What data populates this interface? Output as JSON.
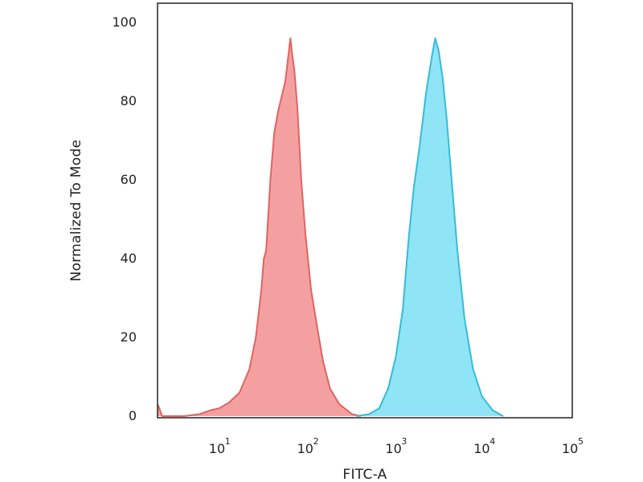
{
  "chart_data": {
    "type": "area",
    "xlabel": "FITC-A",
    "ylabel": "Normalized To Mode",
    "x_scale": "log",
    "xlim": [
      2,
      100000
    ],
    "ylim": [
      0,
      100
    ],
    "grid": false,
    "y_ticks": [
      {
        "value": 0,
        "label": "0"
      },
      {
        "value": 20,
        "label": "20"
      },
      {
        "value": 40,
        "label": "40"
      },
      {
        "value": 60,
        "label": "60"
      },
      {
        "value": 80,
        "label": "80"
      },
      {
        "value": 100,
        "label": "100"
      }
    ],
    "x_ticks": [
      {
        "value": 10,
        "base": "10",
        "exp": "1"
      },
      {
        "value": 100,
        "base": "10",
        "exp": "2"
      },
      {
        "value": 1000,
        "base": "10",
        "exp": "3"
      },
      {
        "value": 10000,
        "base": "10",
        "exp": "4"
      },
      {
        "value": 100000,
        "base": "10",
        "exp": "5"
      }
    ],
    "series": [
      {
        "color": "#e06464",
        "fill": "#f5a0a0",
        "points": [
          [
            2,
            3
          ],
          [
            2.1,
            2
          ],
          [
            2.25,
            0
          ],
          [
            4,
            0
          ],
          [
            6,
            0.5
          ],
          [
            8,
            1.5
          ],
          [
            10,
            2
          ],
          [
            13,
            3.5
          ],
          [
            17,
            6
          ],
          [
            22,
            12
          ],
          [
            26,
            20
          ],
          [
            30,
            32
          ],
          [
            32,
            40
          ],
          [
            34,
            42
          ],
          [
            38,
            60
          ],
          [
            42,
            72
          ],
          [
            47,
            78
          ],
          [
            52,
            82
          ],
          [
            56,
            85
          ],
          [
            61,
            92
          ],
          [
            64,
            96
          ],
          [
            67,
            92
          ],
          [
            71,
            88
          ],
          [
            77,
            78
          ],
          [
            85,
            60
          ],
          [
            95,
            46
          ],
          [
            110,
            32
          ],
          [
            130,
            22
          ],
          [
            150,
            14
          ],
          [
            180,
            7
          ],
          [
            230,
            3
          ],
          [
            320,
            0.5
          ],
          [
            400,
            0
          ]
        ]
      },
      {
        "color": "#36bcd6",
        "fill": "#8fe4f6",
        "points": [
          [
            360,
            0
          ],
          [
            500,
            0.5
          ],
          [
            650,
            2
          ],
          [
            820,
            7
          ],
          [
            1000,
            15
          ],
          [
            1200,
            27
          ],
          [
            1400,
            45
          ],
          [
            1600,
            58
          ],
          [
            1850,
            68
          ],
          [
            2200,
            82
          ],
          [
            2550,
            91
          ],
          [
            2800,
            96
          ],
          [
            3050,
            93
          ],
          [
            3400,
            86
          ],
          [
            3800,
            75
          ],
          [
            4300,
            60
          ],
          [
            5000,
            42
          ],
          [
            6000,
            25
          ],
          [
            7500,
            12
          ],
          [
            9500,
            5
          ],
          [
            12500,
            1.5
          ],
          [
            16500,
            0
          ]
        ]
      }
    ]
  }
}
